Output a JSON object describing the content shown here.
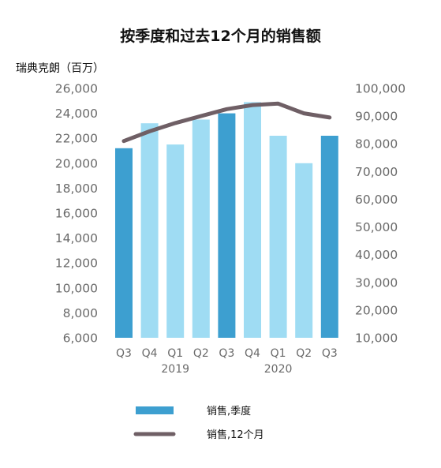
{
  "chart_data": {
    "type": "bar",
    "title": "按季度和过去12个月的销售额",
    "unit_label": "瑞典克朗（百万）",
    "categories": [
      "Q3",
      "Q4",
      "Q1",
      "Q2",
      "Q3",
      "Q4",
      "Q1",
      "Q2",
      "Q3"
    ],
    "year_labels": [
      {
        "label": "2019",
        "center_category_index": 2
      },
      {
        "label": "2020",
        "center_category_index": 6
      }
    ],
    "y_left": {
      "min": 6000,
      "max": 26000,
      "step": 2000,
      "ticks": [
        "6,000",
        "8,000",
        "10,000",
        "12,000",
        "14,000",
        "16,000",
        "18,000",
        "20,000",
        "22,000",
        "24,000",
        "26,000"
      ]
    },
    "y_right": {
      "min": 10000,
      "max": 100000,
      "step": 10000,
      "ticks": [
        "10,000",
        "20,000",
        "30,000",
        "40,000",
        "50,000",
        "60,000",
        "70,000",
        "80,000",
        "90,000",
        "100,000"
      ]
    },
    "grid": false,
    "series": [
      {
        "name": "销售,季度",
        "type": "bar",
        "axis": "left",
        "values": [
          21200,
          23200,
          21500,
          23500,
          24000,
          24900,
          22200,
          20000,
          22200
        ],
        "colors": [
          "#3d9fd0",
          "#9fdcf3",
          "#9fdcf3",
          "#9fdcf3",
          "#3d9fd0",
          "#9fdcf3",
          "#9fdcf3",
          "#9fdcf3",
          "#3d9fd0"
        ]
      },
      {
        "name": "销售,12个月",
        "type": "line",
        "axis": "right",
        "values": [
          81000,
          84500,
          87500,
          90000,
          92500,
          94000,
          94500,
          91000,
          89500
        ],
        "color": "#6f5f65"
      }
    ],
    "legend_placement": "bottom"
  }
}
